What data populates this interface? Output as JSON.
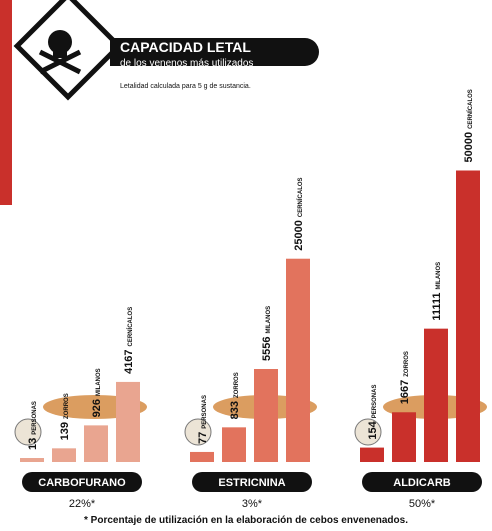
{
  "header": {
    "title": "CAPACIDAD LETAL",
    "subtitle": "de los venenos más utilizados",
    "note": "Letalidad calculada para 5 g de sustancia."
  },
  "groups": [
    {
      "name": "CARBOFURANO",
      "usage": "22%*",
      "color": "#e9a590",
      "items": [
        {
          "value": 13,
          "label": "PERSONAS"
        },
        {
          "value": 139,
          "label": "ZORROS"
        },
        {
          "value": 926,
          "label": "MILANOS"
        },
        {
          "value": 4167,
          "label": "CERNÍCALOS"
        }
      ]
    },
    {
      "name": "ESTRICNINA",
      "usage": "3%*",
      "color": "#e2735d",
      "items": [
        {
          "value": 77,
          "label": "PERSONAS"
        },
        {
          "value": 833,
          "label": "ZORROS"
        },
        {
          "value": 5556,
          "label": "MILANOS"
        },
        {
          "value": 25000,
          "label": "CERNÍCALOS"
        }
      ]
    },
    {
      "name": "ALDICARB",
      "usage": "50%*",
      "color": "#c9302b",
      "items": [
        {
          "value": 154,
          "label": "PERSONAS"
        },
        {
          "value": 1667,
          "label": "ZORROS"
        },
        {
          "value": 11111,
          "label": "MILANOS"
        },
        {
          "value": 50000,
          "label": "CERNÍCALOS"
        }
      ]
    }
  ],
  "footnote": "* Porcentaje de utilización en la elaboración de cebos envenenados."
}
